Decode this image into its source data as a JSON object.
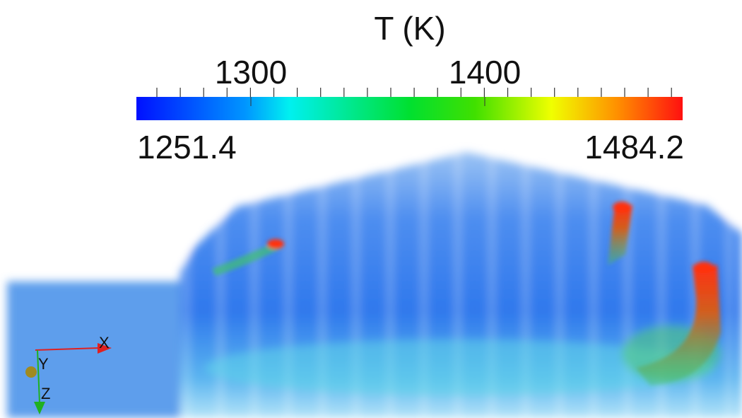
{
  "colorbar": {
    "title": "T (K)",
    "tick_labels": [
      "1300",
      "1400"
    ],
    "range_labels": [
      "1251.4",
      "1484.2"
    ]
  },
  "orientation_axes": {
    "x": "X",
    "y": "Y",
    "z": "Z"
  }
}
